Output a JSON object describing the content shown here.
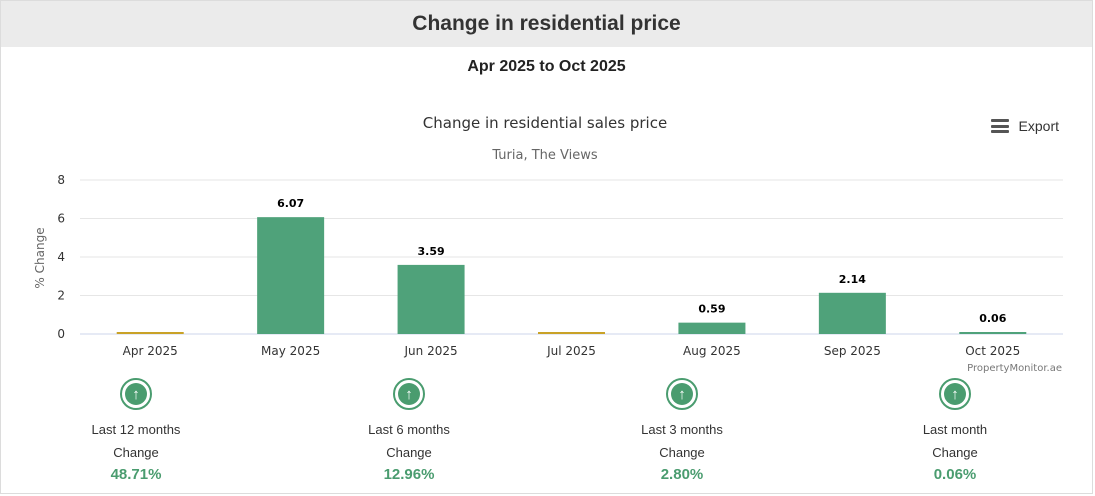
{
  "header": {
    "title": "Change in residential price"
  },
  "date_range": "Apr 2025 to Oct 2025",
  "export": {
    "label": "Export"
  },
  "chart_data": {
    "type": "bar",
    "title": "Change in residential sales price",
    "subtitle": "Turia, The Views",
    "ylabel": "% Change",
    "xlabel": "",
    "ylim": [
      0,
      8
    ],
    "yticks": [
      0,
      2,
      4,
      6,
      8
    ],
    "categories": [
      "Apr 2025",
      "May 2025",
      "Jun 2025",
      "Jul 2025",
      "Aug 2025",
      "Sep 2025",
      "Oct 2025"
    ],
    "values": [
      0,
      6.07,
      3.59,
      0,
      0.59,
      2.14,
      0.06
    ],
    "data_labels": [
      "",
      "6.07",
      "3.59",
      "",
      "0.59",
      "2.14",
      "0.06"
    ],
    "colors": {
      "bar": "#4fa27a",
      "zero": "#c9a227",
      "grid": "#e6e6e6"
    },
    "credit": "PropertyMonitor.ae"
  },
  "stats": [
    {
      "period": "Last 12 months",
      "label": "Change",
      "value": "48.71%",
      "icon": "arrow-up-circle-icon"
    },
    {
      "period": "Last 6 months",
      "label": "Change",
      "value": "12.96%",
      "icon": "arrow-up-circle-icon"
    },
    {
      "period": "Last 3 months",
      "label": "Change",
      "value": "2.80%",
      "icon": "arrow-up-circle-icon"
    },
    {
      "period": "Last month",
      "label": "Change",
      "value": "0.06%",
      "icon": "arrow-up-circle-icon"
    }
  ]
}
